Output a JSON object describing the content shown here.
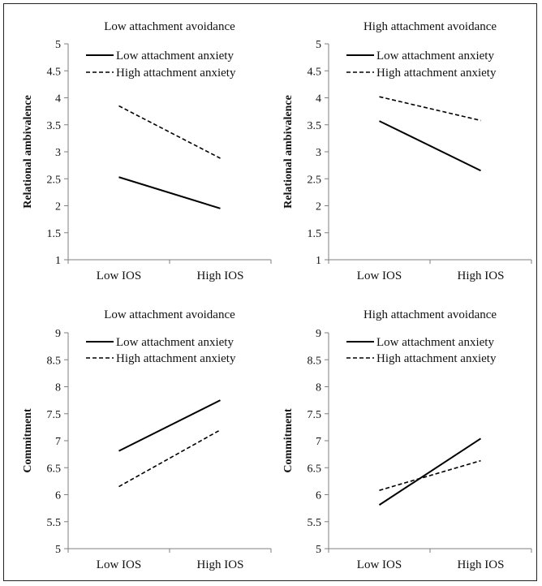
{
  "chart_data": [
    {
      "type": "line",
      "title": "Low attachment avoidance",
      "ylabel": "Relational ambivalence",
      "categories": [
        "Low IOS",
        "High IOS"
      ],
      "ylim": [
        1,
        5
      ],
      "yticks": [
        "1",
        "1.5",
        "2",
        "2.5",
        "3",
        "3.5",
        "4",
        "4.5",
        "5"
      ],
      "legend_position": "top-right",
      "series": [
        {
          "name": "Low attachment anxiety",
          "style": "solid",
          "values": [
            2.53,
            1.95
          ]
        },
        {
          "name": "High attachment anxiety",
          "style": "dashed",
          "values": [
            3.85,
            2.88
          ]
        }
      ]
    },
    {
      "type": "line",
      "title": "High attachment avoidance",
      "ylabel": "Relational ambivalence",
      "categories": [
        "Low IOS",
        "High IOS"
      ],
      "ylim": [
        1,
        5
      ],
      "yticks": [
        "1",
        "1.5",
        "2",
        "2.5",
        "3",
        "3.5",
        "4",
        "4.5",
        "5"
      ],
      "legend_position": "top-right",
      "series": [
        {
          "name": "Low attachment anxiety",
          "style": "solid",
          "values": [
            3.57,
            2.65
          ]
        },
        {
          "name": "High attachment anxiety",
          "style": "dashed",
          "values": [
            4.02,
            3.58
          ]
        }
      ]
    },
    {
      "type": "line",
      "title": "Low attachment avoidance",
      "ylabel": "Commitment",
      "categories": [
        "Low IOS",
        "High IOS"
      ],
      "ylim": [
        5,
        9
      ],
      "yticks": [
        "5",
        "5.5",
        "6",
        "6.5",
        "7",
        "7.5",
        "8",
        "8.5",
        "9"
      ],
      "legend_position": "top-right",
      "series": [
        {
          "name": "Low attachment anxiety",
          "style": "solid",
          "values": [
            6.81,
            7.75
          ]
        },
        {
          "name": "High attachment anxiety",
          "style": "dashed",
          "values": [
            6.15,
            7.2
          ]
        }
      ]
    },
    {
      "type": "line",
      "title": "High attachment avoidance",
      "ylabel": "Commitment",
      "categories": [
        "Low IOS",
        "High IOS"
      ],
      "ylim": [
        5,
        9
      ],
      "yticks": [
        "5",
        "5.5",
        "6",
        "6.5",
        "7",
        "7.5",
        "8",
        "8.5",
        "9"
      ],
      "legend_position": "top-right",
      "series": [
        {
          "name": "Low attachment anxiety",
          "style": "solid",
          "values": [
            5.81,
            7.04
          ]
        },
        {
          "name": "High attachment anxiety",
          "style": "dashed",
          "values": [
            6.08,
            6.63
          ]
        }
      ]
    }
  ]
}
